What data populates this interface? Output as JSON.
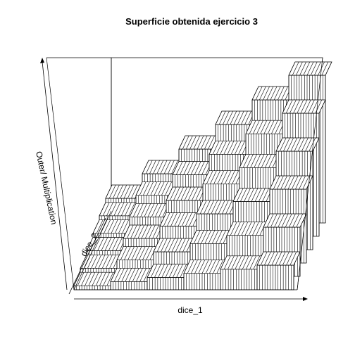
{
  "chart_data": {
    "type": "surface",
    "title": "Superficie obtenida ejercicio 3",
    "xlabel": "dice_1",
    "ylabel": "dice_2",
    "zlabel": "Outer/ Multiplication",
    "x": [
      1,
      2,
      3,
      4,
      5,
      6
    ],
    "y": [
      1,
      2,
      3,
      4,
      5,
      6
    ],
    "z": [
      [
        1,
        2,
        3,
        4,
        5,
        6
      ],
      [
        2,
        4,
        6,
        8,
        10,
        12
      ],
      [
        3,
        6,
        9,
        12,
        15,
        18
      ],
      [
        4,
        8,
        12,
        16,
        20,
        24
      ],
      [
        5,
        10,
        15,
        20,
        25,
        30
      ],
      [
        6,
        12,
        18,
        24,
        30,
        36
      ]
    ],
    "zlim": [
      1,
      36
    ],
    "box": true,
    "axes_ticks": false
  }
}
